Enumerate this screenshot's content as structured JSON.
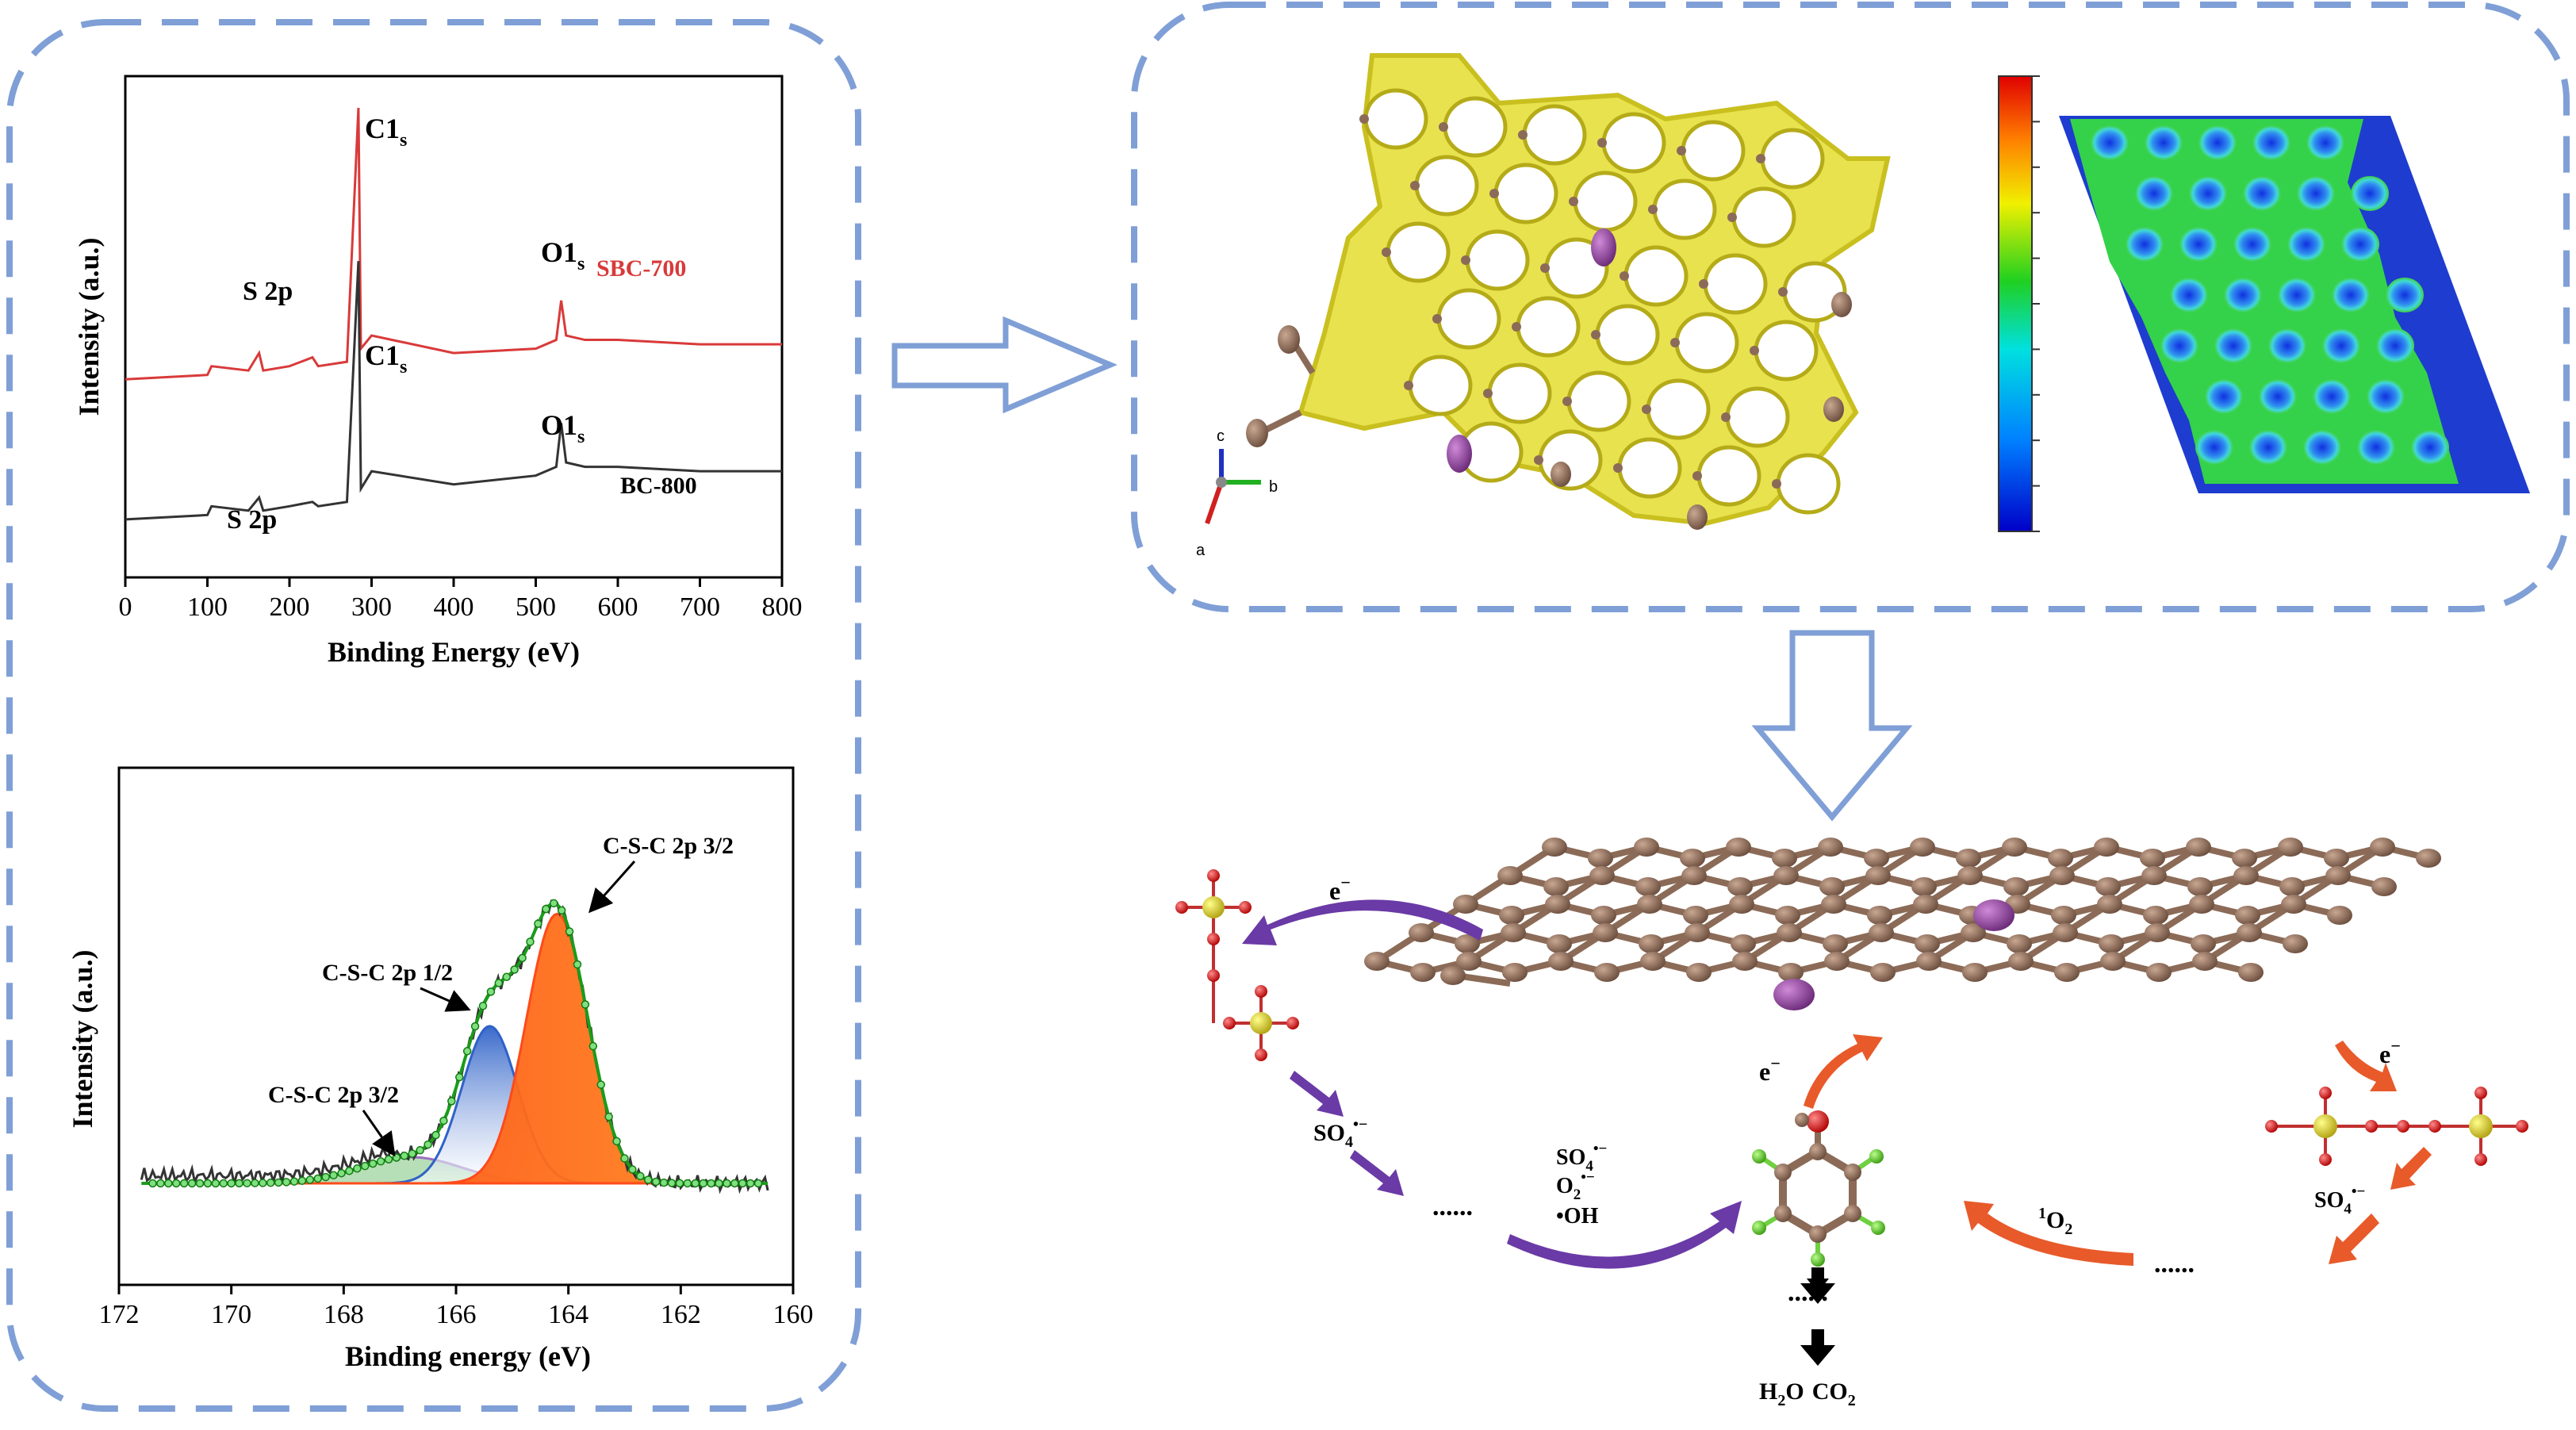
{
  "colors": {
    "frame": "#7f9fd6",
    "sbc700": "#d93a3a",
    "bc800": "#333333",
    "fit_green": "#1a9c1a",
    "peak_red": "#ff4a1a",
    "peak_blue": "#2f62c8",
    "peak_purple": "#9a6fc0",
    "arrow_purple": "#6a3aa6",
    "arrow_orange": "#e85a2a",
    "carbon": "#8b6b57",
    "sulfur": "#8e3a9a",
    "lattice_yellow": "#e6df4a"
  },
  "survey_panel": {
    "ylabel": "Intensity (a.u.)",
    "xlabel": "Binding Energy (eV)",
    "top_labels": {
      "c1s": "C1",
      "c1s_sub": "s",
      "o1s": "O1",
      "o1s_sub": "s",
      "s2p": "S 2p",
      "series": "SBC-700"
    },
    "bottom_labels": {
      "c1s": "C1",
      "c1s_sub": "s",
      "o1s": "O1",
      "o1s_sub": "s",
      "s2p": "S 2p",
      "series": "BC-800"
    }
  },
  "s2p_panel": {
    "ylabel": "Intensity (a.u.)",
    "xlabel": "Binding energy (eV)",
    "peak1": "C-S-C 2p 3/2",
    "peak2": "C-S-C 2p 1/2",
    "peak3": "C-S-C 2p 3/2"
  },
  "structure_panel": {
    "axis_a": "a",
    "axis_b": "b",
    "axis_c": "c"
  },
  "mechanism_panel": {
    "e_left": "e",
    "e_left_sup": "−",
    "e_center": "e",
    "e_center_sup": "−",
    "e_right": "e",
    "e_right_sup": "−",
    "so4_left": "SO",
    "so4_left_sub": "4",
    "so4_left_sup": "•−",
    "so4_mid": "SO",
    "so4_mid_sub": "4",
    "so4_mid_sup": "•−",
    "o2_mid": "O",
    "o2_mid_sub": "2",
    "o2_mid_sup": "•−",
    "oh_mid": "•OH",
    "singlet_o2_sup": "1",
    "singlet_o2": "O",
    "singlet_o2_sub": "2",
    "so4_right": "SO",
    "so4_right_sub": "4",
    "so4_right_sup": "•−",
    "dots_left": "......",
    "dots_center": "......",
    "dots_right": "......",
    "products_h2o": "H",
    "products_h2o_sub": "2",
    "products_h2o_end": "O",
    "products_co2": "CO",
    "products_co2_sub": "2"
  },
  "chart_data": [
    {
      "type": "line",
      "title": "",
      "xlabel": "Binding Energy (eV)",
      "ylabel": "Intensity (a.u.)",
      "xlim": [
        0,
        800
      ],
      "xticks": [
        0,
        100,
        200,
        300,
        400,
        500,
        600,
        700,
        800
      ],
      "grid": false,
      "series": [
        {
          "name": "SBC-700",
          "x": [
            0,
            100,
            105,
            150,
            163,
            168,
            200,
            228,
            235,
            270,
            284,
            287,
            300,
            400,
            500,
            525,
            531,
            537,
            560,
            600,
            700,
            800
          ],
          "y": [
            0.38,
            0.39,
            0.41,
            0.4,
            0.44,
            0.4,
            0.41,
            0.43,
            0.41,
            0.42,
            1.0,
            0.45,
            0.48,
            0.44,
            0.45,
            0.47,
            0.56,
            0.48,
            0.47,
            0.47,
            0.46,
            0.46
          ]
        },
        {
          "name": "BC-800",
          "x": [
            0,
            100,
            105,
            150,
            163,
            168,
            200,
            228,
            235,
            270,
            284,
            287,
            300,
            400,
            500,
            525,
            531,
            537,
            560,
            600,
            700,
            800
          ],
          "y": [
            0.06,
            0.07,
            0.09,
            0.08,
            0.11,
            0.08,
            0.09,
            0.1,
            0.09,
            0.1,
            0.65,
            0.13,
            0.17,
            0.14,
            0.16,
            0.18,
            0.28,
            0.19,
            0.18,
            0.18,
            0.17,
            0.17
          ]
        }
      ]
    },
    {
      "type": "line",
      "title": "",
      "xlabel": "Binding energy (eV)",
      "ylabel": "Intensity (a.u.)",
      "xlim": [
        172,
        160
      ],
      "xticks": [
        172,
        170,
        168,
        166,
        164,
        162,
        160
      ],
      "grid": false,
      "series": [
        {
          "name": "C-S-C 2p 3/2",
          "peak_center": 164.2,
          "peak_height": 0.72,
          "peak_width": 0.55
        },
        {
          "name": "C-S-C 2p 1/2",
          "peak_center": 165.4,
          "peak_height": 0.42,
          "peak_width": 0.5
        },
        {
          "name": "C-S-C 2p 3/2",
          "peak_center": 166.8,
          "peak_height": 0.07,
          "peak_width": 0.9
        }
      ]
    }
  ]
}
